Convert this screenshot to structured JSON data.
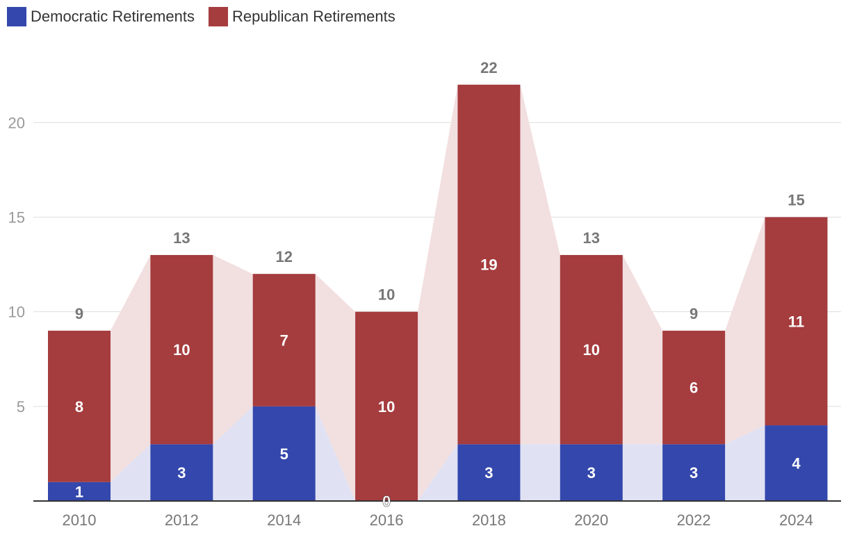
{
  "chart_data": {
    "type": "bar",
    "stacked": true,
    "title": "",
    "xlabel": "",
    "ylabel": "",
    "categories": [
      "2010",
      "2012",
      "2014",
      "2016",
      "2018",
      "2020",
      "2022",
      "2024"
    ],
    "series": [
      {
        "name": "Democratic Retirements",
        "color": "#3347ac",
        "band_color": "#e0e2f3",
        "values": [
          1,
          3,
          5,
          0,
          3,
          3,
          3,
          4
        ]
      },
      {
        "name": "Republican Retirements",
        "color": "#a53c3e",
        "band_color": "#f2dfe0",
        "values": [
          8,
          10,
          7,
          10,
          19,
          10,
          6,
          11
        ]
      }
    ],
    "totals": [
      9,
      13,
      12,
      10,
      22,
      13,
      9,
      15
    ],
    "y_ticks": [
      "5",
      "10",
      "15",
      "20"
    ],
    "ylim": [
      0,
      23.5
    ],
    "grid": true,
    "legend_position": "top-left"
  }
}
